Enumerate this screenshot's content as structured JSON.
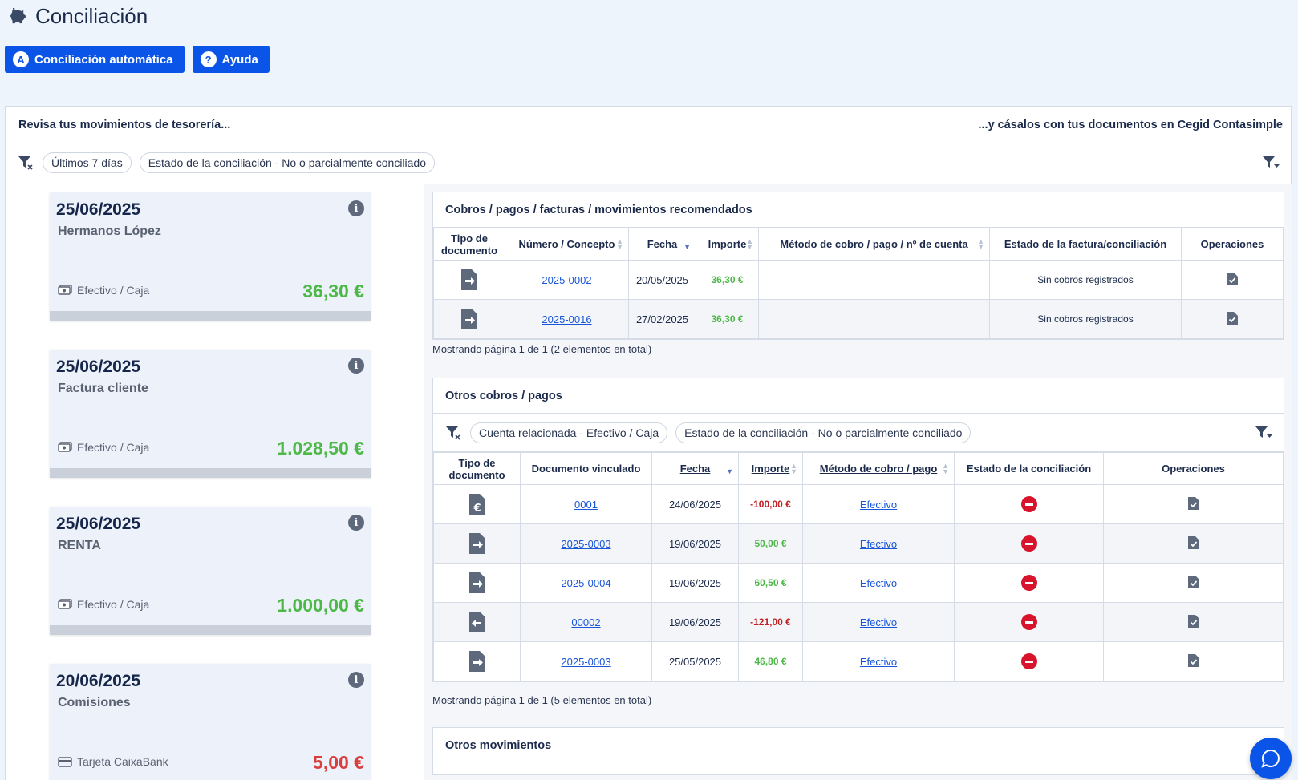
{
  "page": {
    "title": "Conciliación"
  },
  "actions": {
    "auto_label": "Conciliación automática",
    "auto_badge": "A",
    "help_label": "Ayuda",
    "help_badge": "?"
  },
  "panel": {
    "left_heading": "Revisa tus movimientos de tesorería...",
    "right_heading": "...y cásalos con tus documentos en Cegid Contasimple",
    "filters": [
      "Últimos 7 días",
      "Estado de la conciliación - No o parcialmente conciliado"
    ]
  },
  "cards": [
    {
      "date": "25/06/2025",
      "concept": "Hermanos López",
      "account": "Efectivo / Caja",
      "amount": "36,30 €",
      "sign": "pos",
      "account_icon": "cash-icon"
    },
    {
      "date": "25/06/2025",
      "concept": "Factura cliente",
      "account": "Efectivo / Caja",
      "amount": "1.028,50 €",
      "sign": "pos",
      "account_icon": "cash-icon"
    },
    {
      "date": "25/06/2025",
      "concept": "RENTA",
      "account": "Efectivo / Caja",
      "amount": "1.000,00 €",
      "sign": "pos",
      "account_icon": "cash-icon"
    },
    {
      "date": "20/06/2025",
      "concept": "Comisiones",
      "account": "Tarjeta CaixaBank",
      "amount": "5,00 €",
      "sign": "neg",
      "account_icon": "card-icon"
    }
  ],
  "recommended": {
    "title": "Cobros / pagos / facturas / movimientos recomendados",
    "columns": {
      "tipo": "Tipo de documento",
      "numero": "Número / Concepto",
      "fecha": "Fecha",
      "importe": "Importe",
      "metodo": "Método de cobro / pago / nº de cuenta",
      "estado": "Estado de la factura/conciliación",
      "operaciones": "Operaciones"
    },
    "rows": [
      {
        "type_icon": "invoice-out-icon",
        "numero": "2025-0002",
        "fecha": "20/05/2025",
        "importe": "36,30 €",
        "metodo": "",
        "estado": "Sin cobros registrados"
      },
      {
        "type_icon": "invoice-out-icon",
        "numero": "2025-0016",
        "fecha": "27/02/2025",
        "importe": "36,30 €",
        "metodo": "",
        "estado": "Sin cobros registrados"
      }
    ],
    "pager": "Mostrando página 1 de 1 (2 elementos en total)"
  },
  "others": {
    "title": "Otros cobros / pagos",
    "filters": [
      "Cuenta relacionada - Efectivo / Caja",
      "Estado de la conciliación - No o parcialmente conciliado"
    ],
    "columns": {
      "tipo": "Tipo de documento",
      "doc": "Documento vinculado",
      "fecha": "Fecha",
      "importe": "Importe",
      "metodo": "Método de cobro / pago",
      "estado": "Estado de la conciliación",
      "operaciones": "Operaciones"
    },
    "rows": [
      {
        "type_icon": "euro-document-icon",
        "doc": "0001",
        "fecha": "24/06/2025",
        "importe": "-100,00 €",
        "sign": "neg",
        "metodo": "Efectivo",
        "estado": "no-conciliado"
      },
      {
        "type_icon": "invoice-out-icon",
        "doc": "2025-0003",
        "fecha": "19/06/2025",
        "importe": "50,00 €",
        "sign": "pos",
        "metodo": "Efectivo",
        "estado": "no-conciliado"
      },
      {
        "type_icon": "invoice-out-icon",
        "doc": "2025-0004",
        "fecha": "19/06/2025",
        "importe": "60,50 €",
        "sign": "pos",
        "metodo": "Efectivo",
        "estado": "no-conciliado"
      },
      {
        "type_icon": "invoice-in-icon",
        "doc": "00002",
        "fecha": "19/06/2025",
        "importe": "-121,00 €",
        "sign": "neg",
        "metodo": "Efectivo",
        "estado": "no-conciliado"
      },
      {
        "type_icon": "invoice-out-icon",
        "doc": "2025-0003",
        "fecha": "25/05/2025",
        "importe": "46,80 €",
        "sign": "pos",
        "metodo": "Efectivo",
        "estado": "no-conciliado"
      }
    ],
    "pager": "Mostrando página 1 de 1 (5 elementos en total)"
  },
  "movements": {
    "title": "Otros movimientos"
  },
  "colors": {
    "primary": "#0a55e8",
    "positive": "#4db848",
    "negative": "#c02020",
    "status_error": "#d8142c"
  }
}
